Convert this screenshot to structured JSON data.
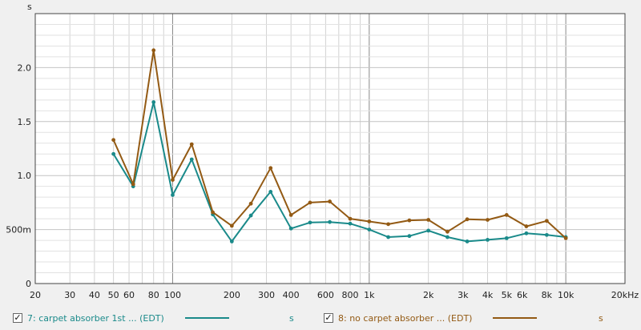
{
  "chart_data": {
    "type": "line",
    "ylabel": "s",
    "xscale": "log",
    "xlim": [
      20,
      20000
    ],
    "ylim": [
      0,
      2.5
    ],
    "yticks": [
      {
        "v": 0,
        "label": "0"
      },
      {
        "v": 0.5,
        "label": "500m"
      },
      {
        "v": 1.0,
        "label": "1.0"
      },
      {
        "v": 1.5,
        "label": "1.5"
      },
      {
        "v": 2.0,
        "label": "2.0"
      }
    ],
    "xticks": [
      {
        "v": 20,
        "label": "20"
      },
      {
        "v": 30,
        "label": "30"
      },
      {
        "v": 40,
        "label": "40"
      },
      {
        "v": 50,
        "label": "50"
      },
      {
        "v": 60,
        "label": "60"
      },
      {
        "v": 80,
        "label": "80"
      },
      {
        "v": 100,
        "label": "100"
      },
      {
        "v": 200,
        "label": "200"
      },
      {
        "v": 300,
        "label": "300"
      },
      {
        "v": 400,
        "label": "400"
      },
      {
        "v": 600,
        "label": "600"
      },
      {
        "v": 800,
        "label": "800"
      },
      {
        "v": 1000,
        "label": "1k"
      },
      {
        "v": 2000,
        "label": "2k"
      },
      {
        "v": 3000,
        "label": "3k"
      },
      {
        "v": 4000,
        "label": "4k"
      },
      {
        "v": 5000,
        "label": "5k"
      },
      {
        "v": 6000,
        "label": "6k"
      },
      {
        "v": 8000,
        "label": "8k"
      },
      {
        "v": 10000,
        "label": "10k"
      },
      {
        "v": 20000,
        "label": "20kHz"
      }
    ],
    "grid": true,
    "x": [
      50,
      63,
      80,
      100,
      125,
      160,
      200,
      250,
      315,
      400,
      500,
      630,
      800,
      1000,
      1250,
      1600,
      2000,
      2500,
      3150,
      4000,
      5000,
      6300,
      8000,
      10000
    ],
    "series": [
      {
        "name": "7: carpet absorber 1st ... (EDT)",
        "unit": "s",
        "color": "#1a8a8a",
        "values": [
          1.2,
          0.9,
          1.68,
          0.82,
          1.15,
          0.64,
          0.39,
          0.63,
          0.85,
          0.51,
          0.565,
          0.57,
          0.555,
          0.5,
          0.43,
          0.44,
          0.49,
          0.43,
          0.39,
          0.405,
          0.42,
          0.465,
          0.45,
          0.43
        ]
      },
      {
        "name": "8: no carpet absorber ... (EDT)",
        "unit": "s",
        "color": "#935a14",
        "values": [
          1.33,
          0.92,
          2.16,
          0.96,
          1.29,
          0.66,
          0.535,
          0.74,
          1.07,
          0.635,
          0.75,
          0.76,
          0.6,
          0.575,
          0.55,
          0.585,
          0.59,
          0.48,
          0.595,
          0.59,
          0.635,
          0.53,
          0.58,
          0.42
        ]
      }
    ]
  },
  "legend": {
    "items": [
      {
        "label": "7: carpet absorber 1st ... (EDT)",
        "unit": "s",
        "checked": "✓"
      },
      {
        "label": "8: no carpet absorber ... (EDT)",
        "unit": "s",
        "checked": "✓"
      }
    ]
  }
}
